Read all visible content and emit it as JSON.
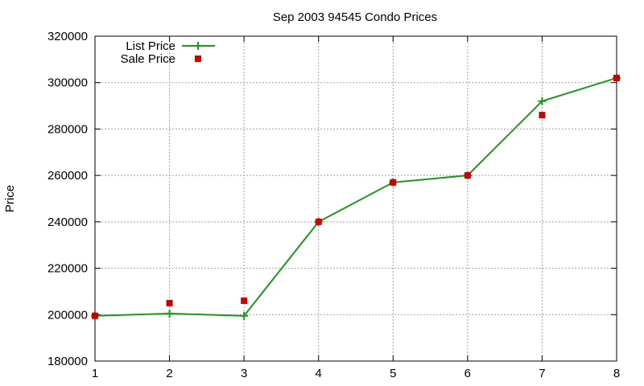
{
  "chart_data": {
    "type": "line",
    "title": "Sep 2003 94545 Condo Prices",
    "xlabel": "",
    "ylabel": "Price",
    "x": [
      1,
      2,
      3,
      4,
      5,
      6,
      7,
      8
    ],
    "xlim": [
      1,
      8
    ],
    "ylim": [
      180000,
      320000
    ],
    "xticks": [
      1,
      2,
      3,
      4,
      5,
      6,
      7,
      8
    ],
    "yticks": [
      180000,
      200000,
      220000,
      240000,
      260000,
      280000,
      300000,
      320000
    ],
    "grid": true,
    "legend_position": "top-left",
    "series": [
      {
        "name": "List Price",
        "style": "line-plus",
        "color": "#1a9a1a",
        "values": [
          199500,
          200500,
          199500,
          240000,
          257000,
          260000,
          292000,
          302000
        ]
      },
      {
        "name": "Sale Price",
        "style": "square-points",
        "color": "#cc0000",
        "values": [
          199500,
          205000,
          206000,
          240000,
          257000,
          260000,
          286000,
          302000
        ]
      }
    ]
  }
}
